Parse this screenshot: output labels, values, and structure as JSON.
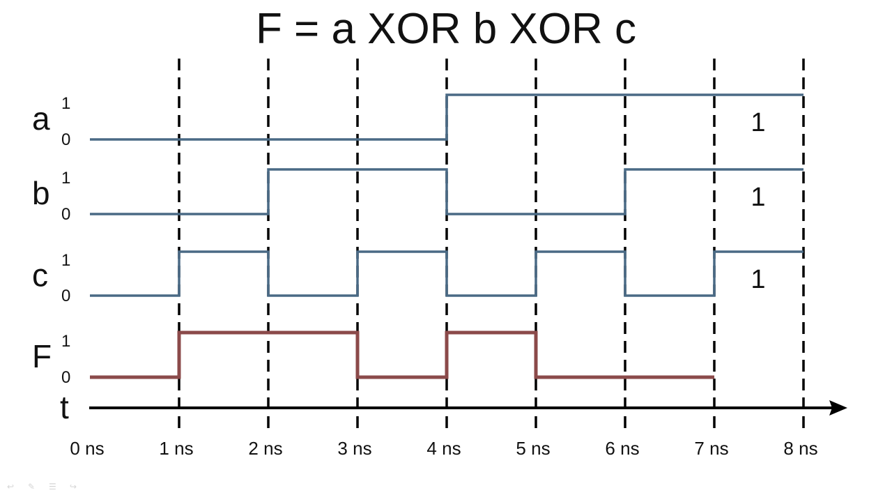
{
  "title": "F = a XOR b XOR c",
  "time_axis": {
    "label": "t",
    "ticks": [
      "0 ns",
      "1 ns",
      "2 ns",
      "3 ns",
      "4 ns",
      "5 ns",
      "6 ns",
      "7 ns",
      "8 ns"
    ]
  },
  "signals": [
    {
      "name": "a",
      "high_label": "1",
      "low_label": "0",
      "color": "#4a6a85",
      "values": [
        0,
        0,
        0,
        0,
        1,
        1,
        1,
        1
      ],
      "end_time": 8,
      "annotation": "1"
    },
    {
      "name": "b",
      "high_label": "1",
      "low_label": "0",
      "color": "#4a6a85",
      "values": [
        0,
        0,
        1,
        1,
        0,
        0,
        1,
        1
      ],
      "end_time": 8,
      "annotation": "1"
    },
    {
      "name": "c",
      "high_label": "1",
      "low_label": "0",
      "color": "#4a6a85",
      "values": [
        0,
        1,
        0,
        1,
        0,
        1,
        0,
        1
      ],
      "end_time": 8,
      "annotation": "1"
    },
    {
      "name": "F",
      "high_label": "1",
      "low_label": "0",
      "color": "#8b4a4a",
      "values": [
        0,
        1,
        1,
        0,
        1,
        0,
        0
      ],
      "end_time": 7,
      "annotation": ""
    }
  ],
  "nav_icons": [
    "back-arrow-icon",
    "pen-icon",
    "menu-icon",
    "forward-arrow-icon"
  ]
}
